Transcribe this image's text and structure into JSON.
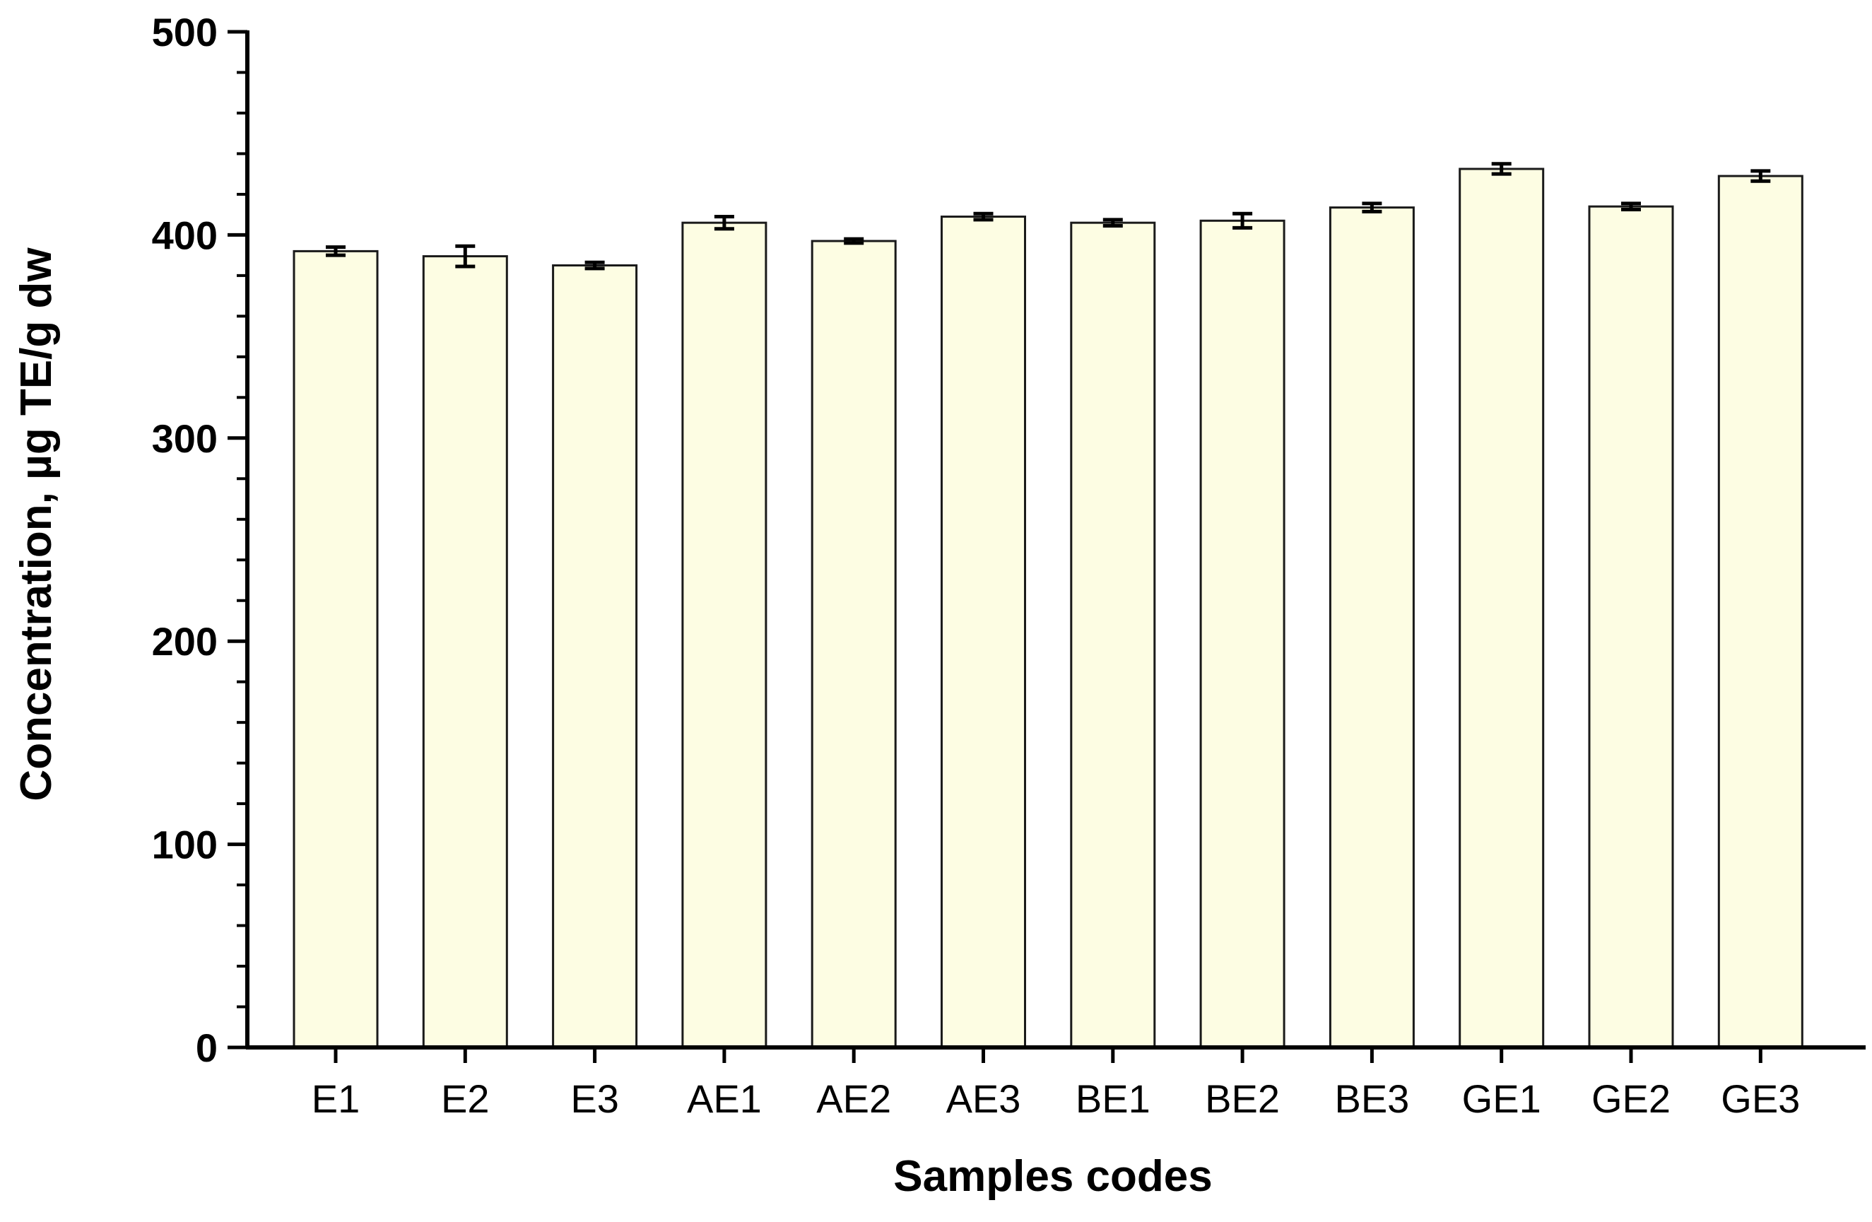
{
  "chart_data": {
    "type": "bar",
    "title": "",
    "xlabel": "Samples codes",
    "ylabel": "Concentration, µg TE/g dw",
    "categories": [
      "E1",
      "E2",
      "E3",
      "AE1",
      "AE2",
      "AE3",
      "BE1",
      "BE2",
      "BE3",
      "GE1",
      "GE2",
      "GE3"
    ],
    "series": [
      {
        "values": [
          392,
          389.5,
          385,
          406,
          397,
          409,
          406,
          407,
          413.5,
          432.5,
          414,
          429
        ],
        "errors": [
          2,
          5,
          1.5,
          3,
          1,
          1.5,
          1.5,
          3.5,
          2,
          2.5,
          1.5,
          2.5
        ]
      }
    ],
    "ylim": [
      0,
      500
    ],
    "yticks": [
      0,
      100,
      200,
      300,
      400,
      500
    ],
    "ytick_labels": [
      "0",
      "100",
      "200",
      "300",
      "400",
      "500"
    ],
    "minor_ticks_per_major": 5,
    "grid": false,
    "legend": "none",
    "colors": {
      "bar_fill": "#fdfde3",
      "bar_stroke": "#1a1a1a",
      "axis": "#000000"
    }
  }
}
